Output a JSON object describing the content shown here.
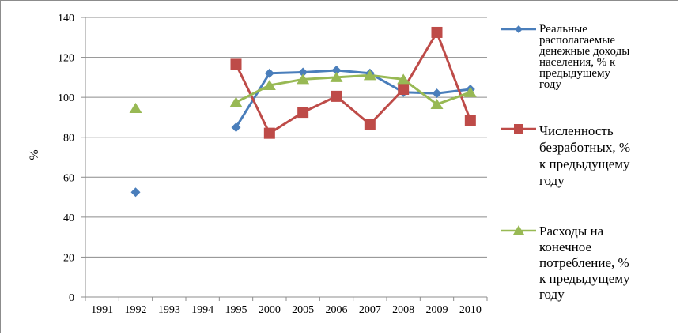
{
  "chart_data": {
    "type": "line",
    "title": "",
    "xlabel": "",
    "ylabel": "%",
    "ylim": [
      0,
      140
    ],
    "yticks": [
      0,
      20,
      40,
      60,
      80,
      100,
      120,
      140
    ],
    "categories": [
      "1991",
      "1992",
      "1993",
      "1994",
      "1995",
      "2000",
      "2005",
      "2006",
      "2007",
      "2008",
      "2009",
      "2010"
    ],
    "grid": "horizontal",
    "legend_position": "right",
    "series": [
      {
        "name": "Реальные располагаемые денежные доходы населения, % к предыдущему году",
        "color": "#4a7ebb",
        "marker": "diamond",
        "values": [
          null,
          52.5,
          null,
          null,
          85,
          112,
          112.5,
          113.5,
          112,
          102.5,
          102,
          104
        ]
      },
      {
        "name": "Численность безработных, % к предыдущему году",
        "color": "#be4b48",
        "marker": "square",
        "values": [
          null,
          null,
          null,
          null,
          116.5,
          82,
          92.5,
          100.5,
          86.5,
          104,
          132.5,
          88.5
        ]
      },
      {
        "name": "Расходы на конечное потребление, % к предыдущему году",
        "color": "#98b954",
        "marker": "triangle",
        "values": [
          null,
          94.5,
          null,
          null,
          97.5,
          106,
          109,
          110,
          111,
          109,
          96.5,
          102.5
        ]
      }
    ]
  },
  "legend": [
    {
      "lines": "Реальные\nрасполагаемые\nденежные доходы\nнаселения, % к\nпредыдущему\nгоду"
    },
    {
      "lines": "Численность\nбезработных, %\nк предыдущему\nгоду"
    },
    {
      "lines": "Расходы на\nконечное\nпотребление, %\nк предыдущему\nгоду"
    }
  ]
}
